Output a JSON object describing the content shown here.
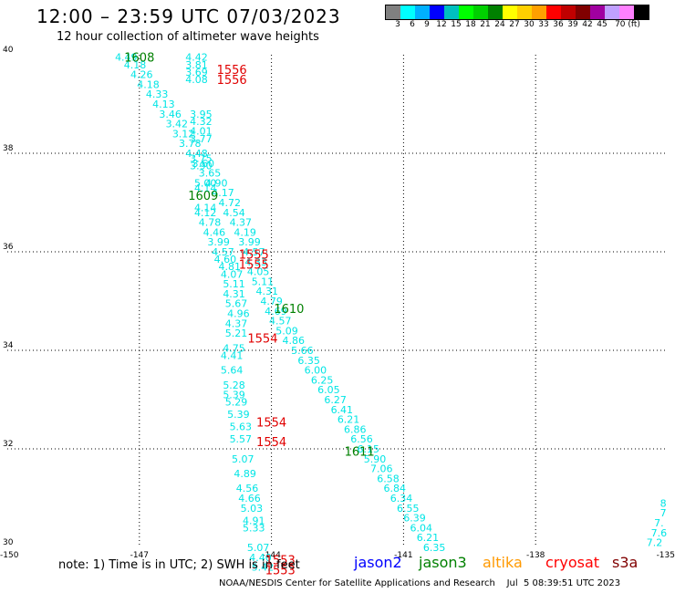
{
  "header": {
    "title": "12:00 – 23:59 UTC 07/03/2023",
    "subtitle": "12 hour collection of altimeter wave heights"
  },
  "scale": {
    "colors": [
      "#808080",
      "#00ffff",
      "#00b0ff",
      "#0000ff",
      "#00c0c0",
      "#00ff00",
      "#00d000",
      "#008000",
      "#ffff00",
      "#ffd000",
      "#ffa000",
      "#ff0000",
      "#c00000",
      "#800000",
      "#a000a0",
      "#c0a0ff",
      "#ff80ff",
      "#000000"
    ],
    "labels": [
      "3",
      "6",
      "9",
      "12",
      "15",
      "18",
      "21",
      "24",
      "27",
      "30",
      "33",
      "36",
      "39",
      "42",
      "45",
      "70 (ft)"
    ]
  },
  "map": {
    "lat_ticks": [
      "40",
      "38",
      "36",
      "34",
      "32",
      "30"
    ],
    "lon_ticks": [
      "-150",
      "-147",
      "-144",
      "-141",
      "-138",
      "-135"
    ],
    "lat_range": [
      30,
      40
    ],
    "lon_range": [
      -150,
      -135
    ],
    "colors": {
      "cyan": "#00e5e5",
      "green": "#008000",
      "red": "#e00000",
      "blue": "#0000cc"
    }
  },
  "tracks": [
    {
      "color": "cyan",
      "labels": [
        [
          -147.3,
          39.95,
          "4.49"
        ],
        [
          -147.1,
          39.8,
          "4.18"
        ],
        [
          -146.95,
          39.6,
          "4.26"
        ],
        [
          -146.8,
          39.4,
          "4.18"
        ],
        [
          -146.6,
          39.2,
          "4.33"
        ],
        [
          -146.45,
          39.0,
          "4.13"
        ],
        [
          -146.3,
          38.8,
          "3.46"
        ],
        [
          -146.15,
          38.6,
          "3.42"
        ],
        [
          -146.0,
          38.4,
          "3.12"
        ],
        [
          -145.85,
          38.2,
          "3.78"
        ],
        [
          -145.7,
          38.0,
          "4.48"
        ],
        [
          -145.55,
          37.8,
          "3.60"
        ],
        [
          -145.4,
          37.6,
          "3.65"
        ],
        [
          -145.25,
          37.4,
          "4.90"
        ],
        [
          -145.1,
          37.2,
          "4.17"
        ],
        [
          -144.95,
          37.0,
          "4.72"
        ],
        [
          -144.85,
          36.8,
          "4.54"
        ],
        [
          -144.7,
          36.6,
          "4.37"
        ],
        [
          -144.6,
          36.4,
          "4.19"
        ],
        [
          -144.5,
          36.2,
          "3.99"
        ],
        [
          -144.4,
          36.0,
          "4.57"
        ],
        [
          -144.35,
          35.8,
          "4.33"
        ],
        [
          -144.3,
          35.6,
          "4.05"
        ],
        [
          -144.2,
          35.4,
          "5.11"
        ],
        [
          -144.1,
          35.2,
          "4.31"
        ],
        [
          -144.0,
          35.0,
          "4.79"
        ],
        [
          -143.9,
          34.8,
          "4.69"
        ],
        [
          -143.8,
          34.6,
          "4.57"
        ],
        [
          -143.65,
          34.4,
          "5.09"
        ],
        [
          -143.5,
          34.2,
          "4.86"
        ],
        [
          -143.3,
          34.0,
          "5.66"
        ],
        [
          -143.15,
          33.8,
          "6.35"
        ],
        [
          -143.0,
          33.6,
          "6.00"
        ],
        [
          -142.85,
          33.4,
          "6.25"
        ],
        [
          -142.7,
          33.2,
          "6.05"
        ],
        [
          -142.55,
          33.0,
          "6.27"
        ],
        [
          -142.4,
          32.8,
          "6.41"
        ],
        [
          -142.25,
          32.6,
          "6.21"
        ],
        [
          -142.1,
          32.4,
          "6.86"
        ],
        [
          -141.95,
          32.2,
          "6.56"
        ],
        [
          -141.8,
          32.0,
          "6.15"
        ],
        [
          -141.65,
          31.8,
          "5.90"
        ],
        [
          -141.5,
          31.6,
          "7.06"
        ],
        [
          -141.35,
          31.4,
          "6.58"
        ],
        [
          -141.2,
          31.2,
          "6.84"
        ],
        [
          -141.05,
          31.0,
          "6.34"
        ],
        [
          -140.9,
          30.8,
          "6.55"
        ],
        [
          -140.75,
          30.6,
          "6.39"
        ],
        [
          -140.6,
          30.4,
          "6.04"
        ],
        [
          -140.45,
          30.2,
          "6.21"
        ],
        [
          -140.3,
          30.0,
          "6.35"
        ]
      ]
    },
    {
      "color": "cyan",
      "labels": [
        [
          -145.7,
          39.95,
          "4.42"
        ],
        [
          -145.7,
          39.8,
          "3.81"
        ],
        [
          -145.7,
          39.65,
          "3.69"
        ],
        [
          -145.7,
          39.5,
          "4.08"
        ],
        [
          -145.6,
          38.8,
          "3.95"
        ],
        [
          -145.6,
          38.65,
          "4.32"
        ],
        [
          -145.6,
          38.45,
          "4.01"
        ],
        [
          -145.6,
          38.3,
          "3.77"
        ],
        [
          -145.6,
          37.9,
          "3.75"
        ],
        [
          -145.6,
          37.75,
          "3.90"
        ],
        [
          -145.5,
          37.4,
          "5.00"
        ],
        [
          -145.5,
          37.3,
          "4.14"
        ],
        [
          -145.5,
          36.9,
          "4.14"
        ],
        [
          -145.5,
          36.8,
          "4.12"
        ],
        [
          -145.4,
          36.6,
          "4.78"
        ],
        [
          -145.3,
          36.4,
          "4.46"
        ],
        [
          -145.2,
          36.2,
          "3.99"
        ],
        [
          -145.1,
          36.0,
          "4.57"
        ],
        [
          -145.05,
          35.85,
          "4.60"
        ],
        [
          -144.95,
          35.7,
          "4.81"
        ],
        [
          -144.9,
          35.55,
          "4.07"
        ],
        [
          -144.85,
          35.35,
          "5.11"
        ],
        [
          -144.85,
          35.15,
          "4.31"
        ],
        [
          -144.8,
          34.95,
          "5.67"
        ],
        [
          -144.75,
          34.75,
          "4.96"
        ],
        [
          -144.8,
          34.55,
          "4.37"
        ],
        [
          -144.8,
          34.35,
          "5.21"
        ],
        [
          -144.85,
          34.05,
          "4.75"
        ],
        [
          -144.9,
          33.9,
          "4.41"
        ],
        [
          -144.9,
          33.6,
          "5.64"
        ],
        [
          -144.85,
          33.3,
          "5.28"
        ],
        [
          -144.85,
          33.1,
          "5.39"
        ],
        [
          -144.8,
          32.95,
          "5.29"
        ],
        [
          -144.75,
          32.7,
          "5.39"
        ],
        [
          -144.7,
          32.45,
          "5.63"
        ],
        [
          -144.7,
          32.2,
          "5.57"
        ],
        [
          -144.65,
          31.8,
          "5.07"
        ],
        [
          -144.6,
          31.5,
          "4.89"
        ],
        [
          -144.55,
          31.2,
          "4.56"
        ],
        [
          -144.5,
          31.0,
          "4.66"
        ],
        [
          -144.45,
          30.8,
          "5.03"
        ],
        [
          -144.4,
          30.55,
          "4.91"
        ],
        [
          -144.4,
          30.4,
          "5.33"
        ],
        [
          -144.3,
          30.0,
          "5.07"
        ],
        [
          -144.25,
          29.8,
          "4.40"
        ],
        [
          -144.2,
          29.6,
          "5.42"
        ]
      ]
    },
    {
      "color": "cyan",
      "labels": [
        [
          -135.1,
          30.9,
          "8"
        ],
        [
          -135.1,
          30.7,
          "7"
        ],
        [
          -135.2,
          30.5,
          "7."
        ],
        [
          -135.2,
          30.3,
          "7.6"
        ],
        [
          -135.3,
          30.1,
          "7.2"
        ]
      ]
    }
  ],
  "times": [
    {
      "color": "green",
      "lon": -147.0,
      "lat": 39.95,
      "text": "1608"
    },
    {
      "color": "green",
      "lon": -145.55,
      "lat": 37.15,
      "text": "1609"
    },
    {
      "color": "green",
      "lon": -143.6,
      "lat": 34.85,
      "text": "1610"
    },
    {
      "color": "green",
      "lon": -142.0,
      "lat": 31.95,
      "text": "1611"
    },
    {
      "color": "red",
      "lon": -144.9,
      "lat": 39.7,
      "text": "1556"
    },
    {
      "color": "red",
      "lon": -144.9,
      "lat": 39.5,
      "text": "1556"
    },
    {
      "color": "red",
      "lon": -144.4,
      "lat": 35.95,
      "text": "1555"
    },
    {
      "color": "red",
      "lon": -144.4,
      "lat": 35.75,
      "text": "1555"
    },
    {
      "color": "red",
      "lon": -144.2,
      "lat": 34.25,
      "text": "1554"
    },
    {
      "color": "red",
      "lon": -144.0,
      "lat": 32.55,
      "text": "1554"
    },
    {
      "color": "red",
      "lon": -144.0,
      "lat": 32.15,
      "text": "1554"
    },
    {
      "color": "red",
      "lon": -143.8,
      "lat": 29.75,
      "text": "1553"
    },
    {
      "color": "red",
      "lon": -143.8,
      "lat": 29.55,
      "text": "1553"
    }
  ],
  "footer": {
    "note": "note: 1) Time is in UTC; 2) SWH is in feet",
    "sats": [
      {
        "name": "jason2",
        "color": "#0000ff"
      },
      {
        "name": "jason3",
        "color": "#008000"
      },
      {
        "name": "altika",
        "color": "#ff9900"
      },
      {
        "name": "cryosat",
        "color": "#ff0000"
      },
      {
        "name": "s3a",
        "color": "#800000"
      }
    ],
    "credit": "NOAA/NESDIS Center for Satellite Applications and Research    Jul  5 08:39:51 UTC 2023"
  }
}
